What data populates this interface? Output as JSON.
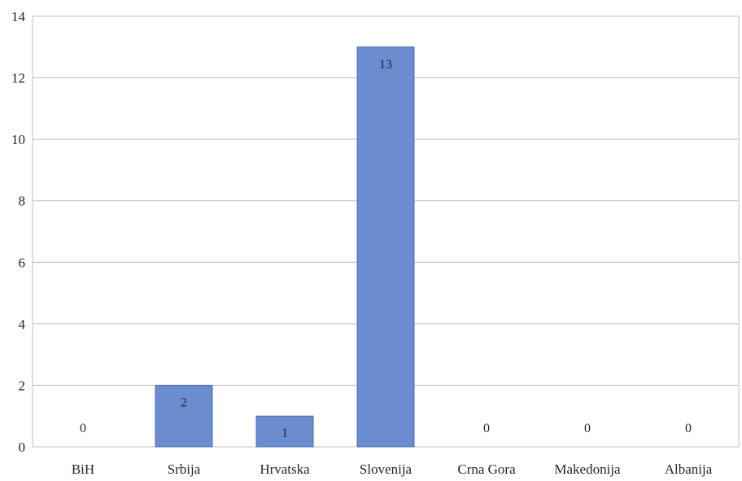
{
  "chart_data": {
    "type": "bar",
    "categories": [
      "BiH",
      "Srbija",
      "Hrvatska",
      "Slovenija",
      "Crna Gora",
      "Makedonija",
      "Albanija"
    ],
    "values": [
      0,
      2,
      1,
      13,
      0,
      0,
      0
    ],
    "data_labels": [
      "0",
      "2",
      "1",
      "13",
      "0",
      "0",
      "0"
    ],
    "yticks": [
      "0",
      "2",
      "4",
      "6",
      "8",
      "10",
      "12",
      "14"
    ],
    "ylim": [
      0,
      14
    ],
    "grid": true,
    "legend": "none",
    "bar_color": "#6b8ccf",
    "bar_edge_color": "#4a6db5"
  }
}
